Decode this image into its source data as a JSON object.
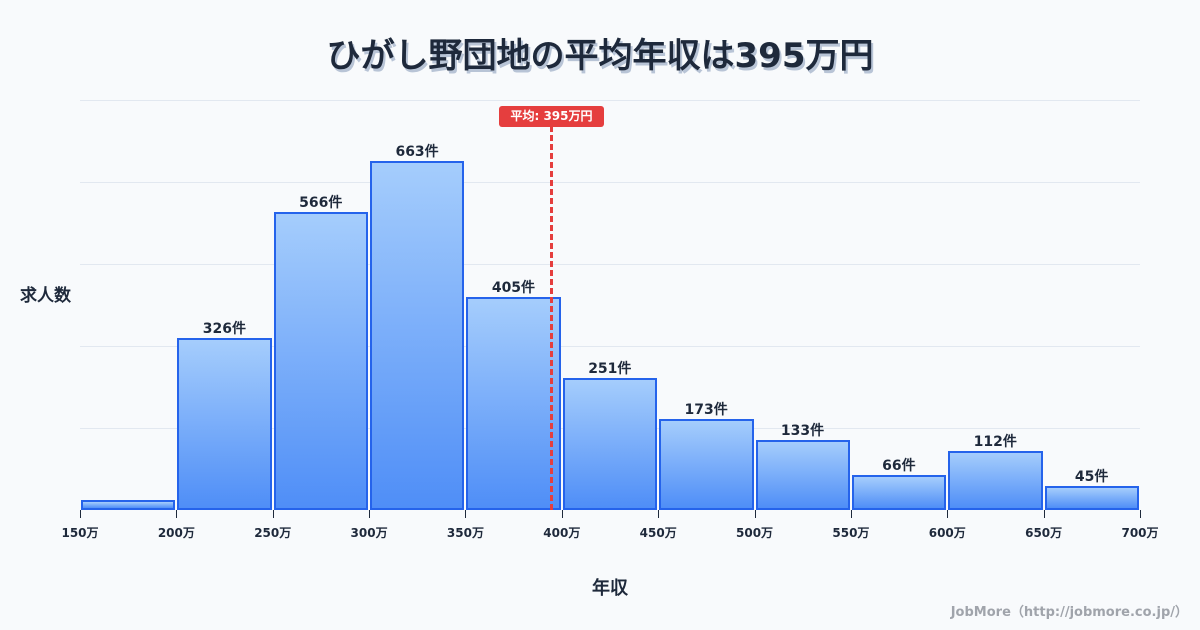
{
  "title": "ひがし野団地の平均年収は395万円",
  "mean_badge": "平均: 395万円",
  "credit": "JobMore（http://jobmore.co.jp/）",
  "colors": {
    "bar_border": "#2563eb",
    "bar_top": "#a5cdfc",
    "bar_bottom": "#4f8ef7",
    "mean_line": "#e53e3e",
    "text": "#1e293b",
    "background": "#f8fafc"
  },
  "chart_data": {
    "type": "bar",
    "title": "ひがし野団地の平均年収は395万円",
    "xlabel": "年収",
    "ylabel": "求人数",
    "categories": [
      "150-200万",
      "200-250万",
      "250-300万",
      "300-350万",
      "350-400万",
      "400-450万",
      "450-500万",
      "500-550万",
      "550-600万",
      "600-650万",
      "650-700万"
    ],
    "values": [
      19,
      326,
      566,
      663,
      405,
      251,
      173,
      133,
      66,
      112,
      45
    ],
    "value_labels": [
      "",
      "326件",
      "566件",
      "663件",
      "405件",
      "251件",
      "173件",
      "133件",
      "66件",
      "112件",
      "45件"
    ],
    "x_ticks": [
      "150万",
      "200万",
      "250万",
      "300万",
      "350万",
      "400万",
      "450万",
      "500万",
      "550万",
      "600万",
      "650万",
      "700万"
    ],
    "mean": 395,
    "mean_label": "平均: 395万円",
    "ylim": [
      0,
      780
    ],
    "grid": true,
    "legend": null
  }
}
